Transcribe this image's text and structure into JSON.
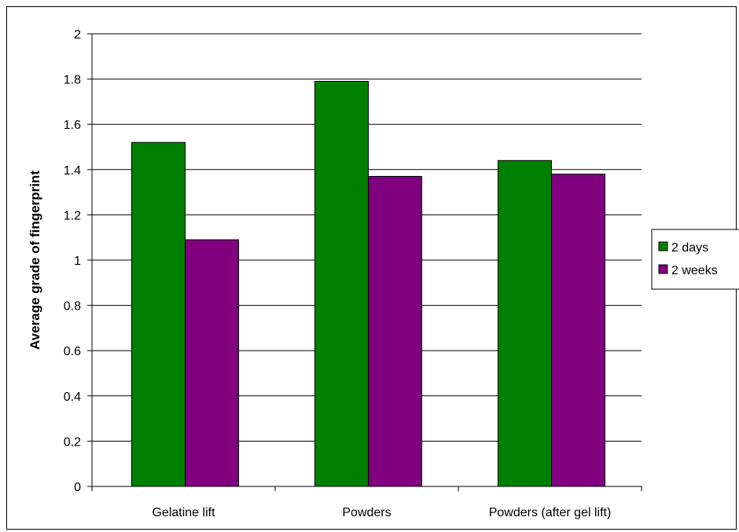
{
  "chart_data": {
    "type": "bar",
    "title": "",
    "xlabel": "",
    "ylabel": "Average grade of fingerprint",
    "ylim": [
      0,
      2
    ],
    "yticks": [
      "0",
      "0.2",
      "0.4",
      "0.6",
      "0.8",
      "1",
      "1.2",
      "1.4",
      "1.6",
      "1.8",
      "2"
    ],
    "categories": [
      "Gelatine lift",
      "Powders",
      "Powders (after gel lift)"
    ],
    "series": [
      {
        "name": "2 days",
        "values": [
          1.52,
          1.79,
          1.44
        ],
        "color": "#008000"
      },
      {
        "name": "2 weeks",
        "values": [
          1.09,
          1.37,
          1.38
        ],
        "color": "#800080"
      }
    ],
    "grid": true,
    "legend_position": "right"
  }
}
